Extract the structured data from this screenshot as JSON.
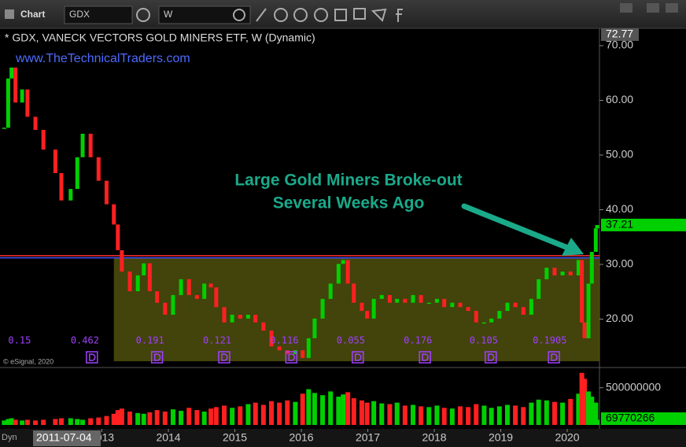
{
  "toolbar": {
    "title": "Chart",
    "symbol": "GDX",
    "interval": "W"
  },
  "chart_data": {
    "type": "candlestick",
    "title": "* GDX, VANECK VECTORS GOLD MINERS ETF, W (Dynamic)",
    "subtitle": "www.TheTechnicalTraders.com",
    "credit": "© eSignal, 2020",
    "annotation": [
      "Large Gold Miners Broke-out",
      "Several Weeks Ago"
    ],
    "annotation_color": "#1aaa8a",
    "up_color": "#00d000",
    "down_color": "#ff2020",
    "x": [
      2011.53,
      2011.59,
      2011.64,
      2011.7,
      2011.8,
      2011.88,
      2012.0,
      2012.12,
      2012.3,
      2012.39,
      2012.53,
      2012.63,
      2012.71,
      2012.83,
      2012.95,
      2013.07,
      2013.18,
      2013.24,
      2013.3,
      2013.42,
      2013.54,
      2013.63,
      2013.72,
      2013.83,
      2013.95,
      2014.07,
      2014.19,
      2014.31,
      2014.43,
      2014.54,
      2014.64,
      2014.72,
      2014.84,
      2014.96,
      2015.08,
      2015.2,
      2015.31,
      2015.43,
      2015.55,
      2015.67,
      2015.79,
      2015.91,
      2016.02,
      2016.11,
      2016.2,
      2016.32,
      2016.44,
      2016.56,
      2016.63,
      2016.7,
      2016.79,
      2016.91,
      2016.99,
      2017.09,
      2017.21,
      2017.33,
      2017.44,
      2017.56,
      2017.68,
      2017.8,
      2017.92,
      2018.04,
      2018.15,
      2018.27,
      2018.39,
      2018.51,
      2018.63,
      2018.75,
      2018.86,
      2018.98,
      2019.1,
      2019.22,
      2019.34,
      2019.46,
      2019.57,
      2019.69,
      2019.81,
      2019.93,
      2020.05,
      2020.17,
      2020.22,
      2020.26,
      2020.32,
      2020.37,
      2020.43,
      2020.45
    ],
    "values": [
      55,
      64,
      66,
      59.6,
      62,
      57,
      54.6,
      51,
      46.7,
      41.7,
      43.8,
      49.6,
      53.9,
      49.6,
      45.3,
      41,
      37.3,
      32.6,
      28.7,
      25.1,
      28,
      30.2,
      25.1,
      23,
      20.8,
      24.4,
      27.3,
      24.4,
      23.7,
      26.5,
      25.8,
      22.2,
      19.4,
      20.8,
      20.1,
      20.8,
      19.4,
      17.9,
      15,
      14.3,
      13.6,
      14.3,
      12.9,
      16.5,
      20.1,
      23.7,
      26.5,
      30.1,
      30.8,
      26.5,
      23,
      21.5,
      20.1,
      23.7,
      24.4,
      23,
      23.7,
      23,
      24.4,
      23,
      23,
      23.7,
      22.2,
      23,
      22.2,
      21.5,
      19.4,
      19.4,
      20.1,
      21.5,
      23,
      22.2,
      20.8,
      23.7,
      27.3,
      29.4,
      28,
      28.7,
      28,
      30.8,
      19.4,
      16.5,
      26.5,
      32.3,
      36.6,
      37.21
    ],
    "high": 72.77,
    "xlim": [
      2011.467,
      2020.485
    ],
    "xticks": [
      {
        "value": 2013,
        "label": "2013"
      },
      {
        "value": 2014,
        "label": "2014"
      },
      {
        "value": 2015,
        "label": "2015"
      },
      {
        "value": 2016,
        "label": "2016"
      },
      {
        "value": 2017,
        "label": "2017"
      },
      {
        "value": 2018,
        "label": "2018"
      },
      {
        "value": 2019,
        "label": "2019"
      },
      {
        "value": 2020,
        "label": "2020"
      }
    ],
    "start_date": "2011-07-04",
    "ylim": [
      11.44,
      73.17
    ],
    "yticks": [
      {
        "value": 20,
        "label": "20.00"
      },
      {
        "value": 30,
        "label": "30.00"
      },
      {
        "value": 40,
        "label": "40.00"
      },
      {
        "value": 50,
        "label": "50.00"
      },
      {
        "value": 60,
        "label": "60.00"
      },
      {
        "value": 70,
        "label": "70.00"
      }
    ],
    "levels": [
      {
        "value": 31.6,
        "color": "#ff3030"
      },
      {
        "value": 31.2,
        "color": "#4050ff"
      }
    ],
    "zone": {
      "x": [
        2013.18,
        2020.485
      ],
      "y": [
        12.3,
        31.2
      ],
      "color": "#5a5a10"
    },
    "dividends": [
      {
        "x": 2011.59,
        "amount": 0.15
      },
      {
        "x": 2012.53,
        "amount": 0.462
      },
      {
        "x": 2013.51,
        "amount": 0.191
      },
      {
        "x": 2014.52,
        "amount": 0.121
      },
      {
        "x": 2015.53,
        "amount": 0.116
      },
      {
        "x": 2016.53,
        "amount": 0.055
      },
      {
        "x": 2017.54,
        "amount": 0.176
      },
      {
        "x": 2018.53,
        "amount": 0.105
      },
      {
        "x": 2019.48,
        "amount": 0.1905
      }
    ],
    "volume": {
      "ylim": [
        0,
        740000000
      ],
      "yticks": [
        500000000
      ],
      "values": [
        60000000,
        80000000,
        90000000,
        70000000,
        60000000,
        70000000,
        60000000,
        70000000,
        80000000,
        90000000,
        90000000,
        80000000,
        70000000,
        90000000,
        100000000,
        120000000,
        150000000,
        200000000,
        220000000,
        180000000,
        160000000,
        150000000,
        170000000,
        200000000,
        180000000,
        210000000,
        190000000,
        230000000,
        200000000,
        180000000,
        220000000,
        240000000,
        260000000,
        230000000,
        250000000,
        280000000,
        300000000,
        270000000,
        320000000,
        300000000,
        330000000,
        310000000,
        420000000,
        480000000,
        430000000,
        400000000,
        450000000,
        380000000,
        410000000,
        440000000,
        360000000,
        330000000,
        300000000,
        320000000,
        290000000,
        280000000,
        300000000,
        260000000,
        270000000,
        250000000,
        240000000,
        260000000,
        230000000,
        220000000,
        250000000,
        240000000,
        280000000,
        260000000,
        230000000,
        250000000,
        270000000,
        260000000,
        240000000,
        300000000,
        340000000,
        330000000,
        310000000,
        300000000,
        350000000,
        420000000,
        700000000,
        620000000,
        450000000,
        380000000,
        300000000,
        69770266
      ]
    }
  }
}
